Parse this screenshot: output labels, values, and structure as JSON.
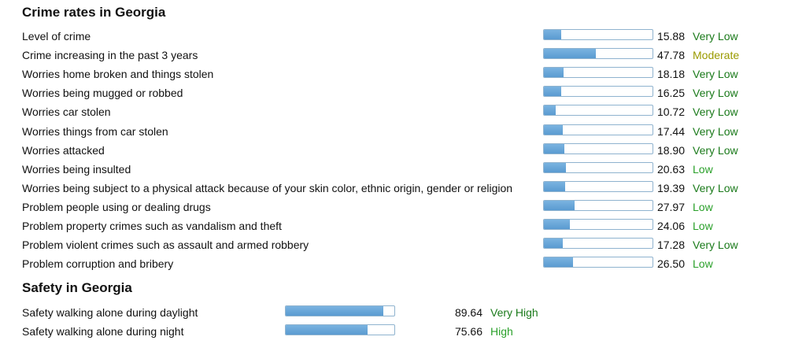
{
  "crime": {
    "title": "Crime rates in Georgia",
    "rows": [
      {
        "label": "Level of crime",
        "value": "15.88",
        "level": 15.88,
        "rating": "Very Low",
        "color": "#1a7a1a"
      },
      {
        "label": "Crime increasing in the past 3 years",
        "value": "47.78",
        "level": 47.78,
        "rating": "Moderate",
        "color": "#9a9a00"
      },
      {
        "label": "Worries home broken and things stolen",
        "value": "18.18",
        "level": 18.18,
        "rating": "Very Low",
        "color": "#1a7a1a"
      },
      {
        "label": "Worries being mugged or robbed",
        "value": "16.25",
        "level": 16.25,
        "rating": "Very Low",
        "color": "#1a7a1a"
      },
      {
        "label": "Worries car stolen",
        "value": "10.72",
        "level": 10.72,
        "rating": "Very Low",
        "color": "#1a7a1a"
      },
      {
        "label": "Worries things from car stolen",
        "value": "17.44",
        "level": 17.44,
        "rating": "Very Low",
        "color": "#1a7a1a"
      },
      {
        "label": "Worries attacked",
        "value": "18.90",
        "level": 18.9,
        "rating": "Very Low",
        "color": "#1a7a1a"
      },
      {
        "label": "Worries being insulted",
        "value": "20.63",
        "level": 20.63,
        "rating": "Low",
        "color": "#2aa02a"
      },
      {
        "label": "Worries being subject to a physical attack because of your skin color, ethnic origin, gender or religion",
        "value": "19.39",
        "level": 19.39,
        "rating": "Very Low",
        "color": "#1a7a1a"
      },
      {
        "label": "Problem people using or dealing drugs",
        "value": "27.97",
        "level": 27.97,
        "rating": "Low",
        "color": "#2aa02a"
      },
      {
        "label": "Problem property crimes such as vandalism and theft",
        "value": "24.06",
        "level": 24.06,
        "rating": "Low",
        "color": "#2aa02a"
      },
      {
        "label": "Problem violent crimes such as assault and armed robbery",
        "value": "17.28",
        "level": 17.28,
        "rating": "Very Low",
        "color": "#1a7a1a"
      },
      {
        "label": "Problem corruption and bribery",
        "value": "26.50",
        "level": 26.5,
        "rating": "Low",
        "color": "#2aa02a"
      }
    ]
  },
  "safety": {
    "title": "Safety in Georgia",
    "rows": [
      {
        "label": "Safety walking alone during daylight",
        "value": "89.64",
        "level": 89.64,
        "rating": "Very High",
        "color": "#1a7a1a"
      },
      {
        "label": "Safety walking alone during night",
        "value": "75.66",
        "level": 75.66,
        "rating": "High",
        "color": "#2aa02a"
      }
    ]
  }
}
